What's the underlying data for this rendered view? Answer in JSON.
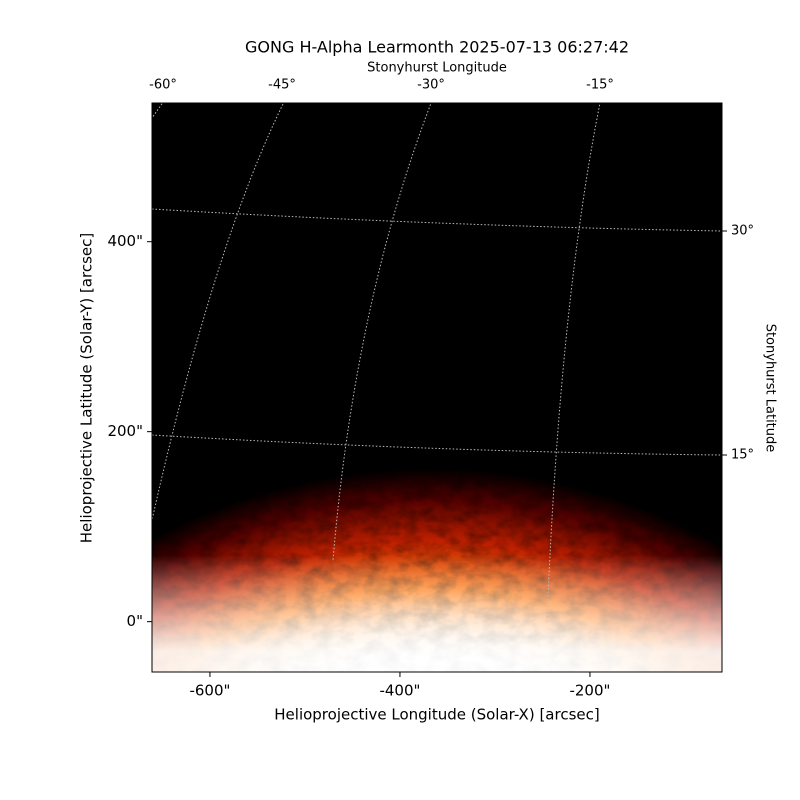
{
  "chart_data": {
    "type": "image",
    "title": "GONG H-Alpha Learmonth 2025-07-13 06:27:42",
    "x_label": "Helioprojective Longitude (Solar-X) [arcsec]",
    "y_label": "Helioprojective Latitude (Solar-Y) [arcsec]",
    "xlim": [
      -661,
      -61
    ],
    "ylim": [
      -53,
      546
    ],
    "xticks": [
      {
        "value": -600,
        "label": "-600\""
      },
      {
        "value": -400,
        "label": "-400\""
      },
      {
        "value": -200,
        "label": "-200\""
      }
    ],
    "yticks": [
      {
        "value": 0,
        "label": "0\""
      },
      {
        "value": 200,
        "label": "200\""
      },
      {
        "value": 400,
        "label": "400\""
      }
    ],
    "top_axis_label": "Stonyhurst Longitude",
    "right_axis_label": "Stonyhurst Latitude",
    "lon_ticks": [
      {
        "value": -60,
        "label": "-60°"
      },
      {
        "value": -45,
        "label": "-45°"
      },
      {
        "value": -30,
        "label": "-30°"
      },
      {
        "value": -15,
        "label": "-15°"
      }
    ],
    "lat_ticks": [
      {
        "value": 15,
        "label": "15°"
      },
      {
        "value": 30,
        "label": "30°"
      }
    ]
  }
}
